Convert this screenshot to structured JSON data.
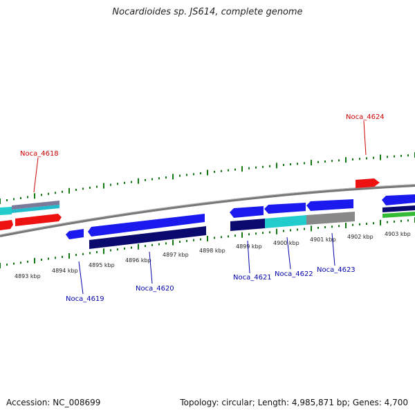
{
  "title": "Nocardioides sp. JS614, complete genome",
  "footer": {
    "accession": "Accession: NC_008699",
    "stats": "Topology: circular; Length: 4,985,871 bp; Genes: 4,700"
  },
  "colors": {
    "forward_gene": "#1a1aee",
    "reverse_gene": "#ee1111",
    "dark_blue": "#0a0a6e",
    "cyan": "#22cccc",
    "gray": "#888888",
    "green": "#33bb33",
    "tick": "#117711",
    "highlight_red": "#cc0000",
    "highlight_blue": "#0000aa"
  },
  "scale_labels": [
    "4893 kbp",
    "4894 kbp",
    "4895 kbp",
    "4896 kbp",
    "4897 kbp",
    "4898 kbp",
    "4899 kbp",
    "4900 kbp",
    "4901 kbp",
    "4902 kbp",
    "4903 kbp"
  ],
  "gene_labels": [
    {
      "name": "Noca_4618",
      "strand": "reverse"
    },
    {
      "name": "Noca_4624",
      "strand": "reverse"
    },
    {
      "name": "Noca_4619",
      "strand": "forward"
    },
    {
      "name": "Noca_4620",
      "strand": "forward"
    },
    {
      "name": "Noca_4621",
      "strand": "forward"
    },
    {
      "name": "Noca_4622",
      "strand": "forward"
    },
    {
      "name": "Noca_4623",
      "strand": "forward"
    }
  ]
}
